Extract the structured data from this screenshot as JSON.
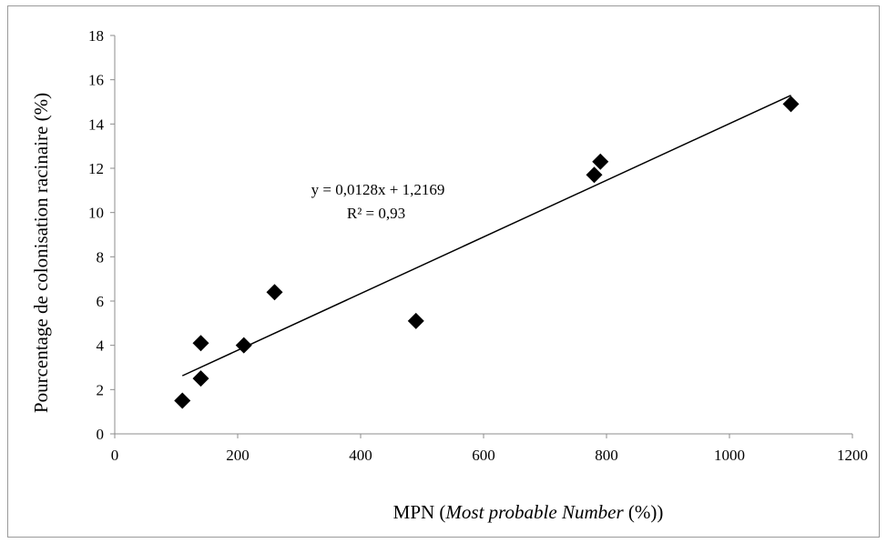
{
  "chart_data": {
    "type": "scatter",
    "title": "",
    "xlabel_parts": {
      "prefix": "MPN (",
      "italic": "Most probable Number",
      "suffix": " (%))"
    },
    "ylabel": "Pourcentage de colonisation racinaire  (%)",
    "xlim": [
      0,
      1200
    ],
    "ylim": [
      0,
      18
    ],
    "xticks": [
      0,
      200,
      400,
      600,
      800,
      1000,
      1200
    ],
    "yticks": [
      0,
      2,
      4,
      6,
      8,
      10,
      12,
      14,
      16,
      18
    ],
    "grid": false,
    "legend": "none",
    "marker": "diamond",
    "marker_color": "#000000",
    "series": [
      {
        "points": [
          {
            "x": 110,
            "y": 1.5
          },
          {
            "x": 140,
            "y": 2.5
          },
          {
            "x": 140,
            "y": 4.1
          },
          {
            "x": 210,
            "y": 4.0
          },
          {
            "x": 260,
            "y": 6.4
          },
          {
            "x": 490,
            "y": 5.1
          },
          {
            "x": 780,
            "y": 11.7
          },
          {
            "x": 790,
            "y": 12.3
          },
          {
            "x": 1100,
            "y": 14.9
          }
        ]
      }
    ],
    "trendline": {
      "type": "linear",
      "slope": 0.0128,
      "intercept": 1.2169,
      "x_range": [
        110,
        1100
      ],
      "equation_label": "y = 0,0128x + 1,2169",
      "r2_label": "R² = 0,93"
    }
  }
}
